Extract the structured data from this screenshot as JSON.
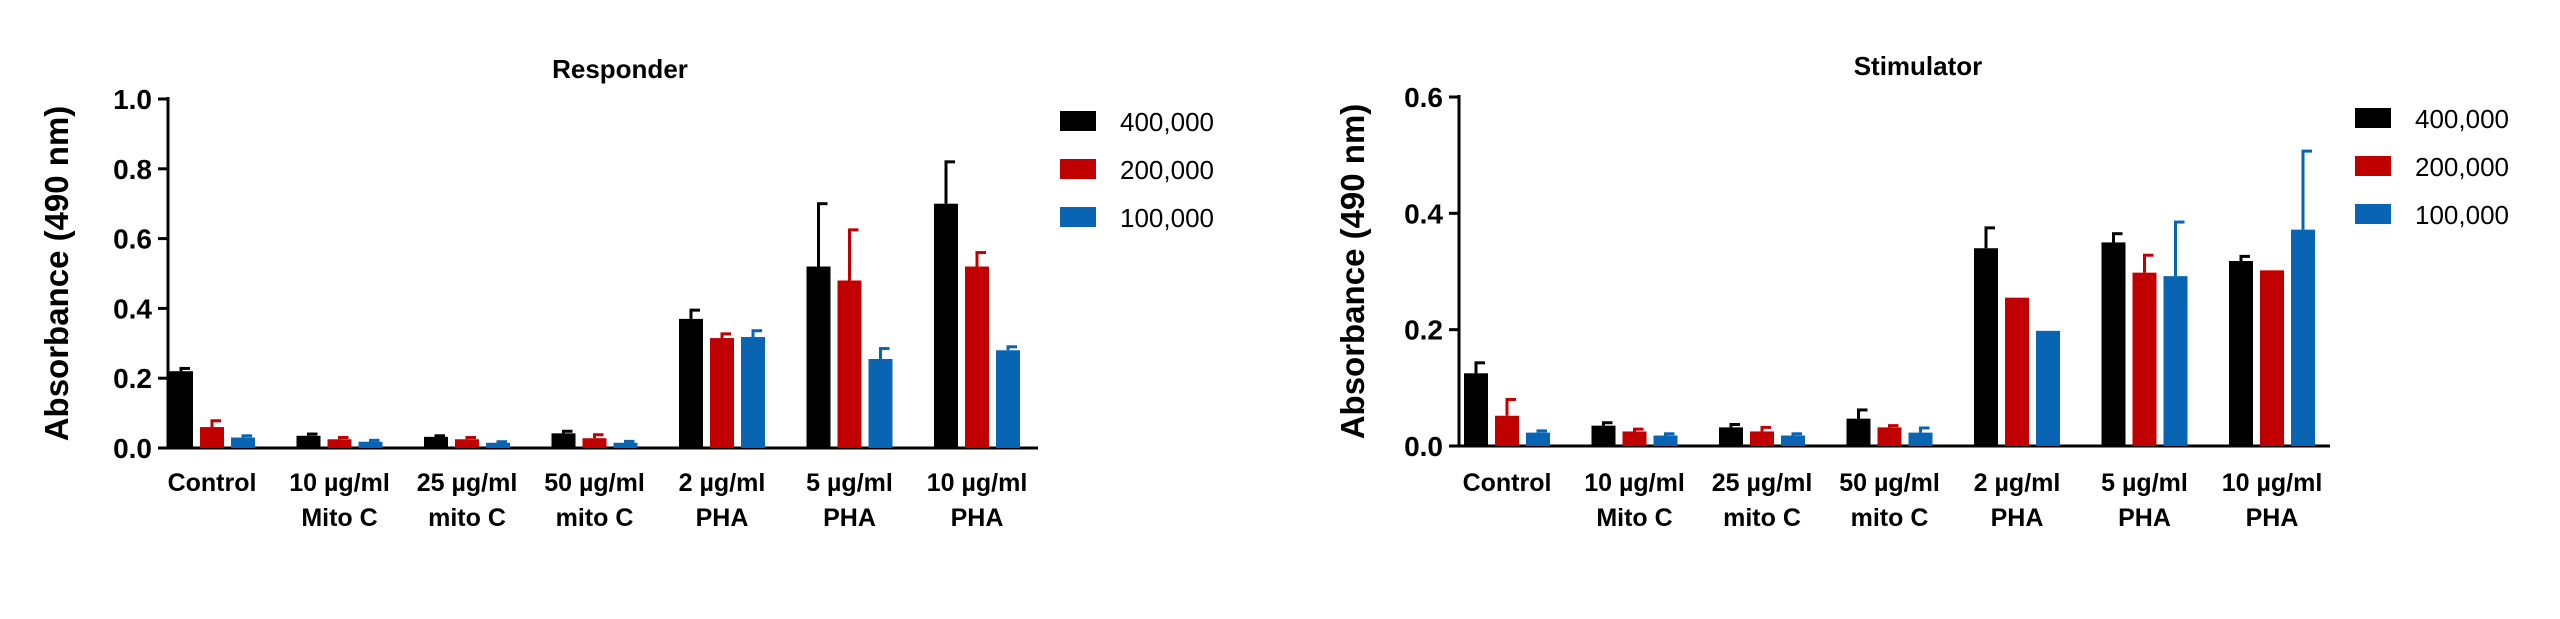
{
  "chart_data": [
    {
      "type": "bar",
      "title": "Responder",
      "ylabel": "Absorbance (490 nm)",
      "xlabel": "",
      "ylim": [
        0,
        1.0
      ],
      "yticks": [
        "0.0",
        "0.2",
        "0.4",
        "0.6",
        "0.8",
        "1.0"
      ],
      "categories": [
        [
          "Control"
        ],
        [
          "10 µg/ml",
          "Mito C"
        ],
        [
          "25 µg/ml",
          "mito C"
        ],
        [
          "50 µg/ml",
          "mito C"
        ],
        [
          "2 µg/ml",
          "PHA"
        ],
        [
          "5 µg/ml",
          "PHA"
        ],
        [
          "10 µg/ml",
          "PHA"
        ]
      ],
      "legend_position": "top-right",
      "series": [
        {
          "name": "400,000",
          "color": "#000000",
          "values": [
            0.22,
            0.035,
            0.032,
            0.042,
            0.37,
            0.52,
            0.7
          ],
          "errors": [
            0.008,
            0.005,
            0.003,
            0.006,
            0.025,
            0.18,
            0.12
          ]
        },
        {
          "name": "200,000",
          "color": "#c00000",
          "values": [
            0.06,
            0.025,
            0.025,
            0.028,
            0.315,
            0.48,
            0.52
          ],
          "errors": [
            0.018,
            0.005,
            0.005,
            0.01,
            0.012,
            0.145,
            0.04
          ]
        },
        {
          "name": "100,000",
          "color": "#0a64b4",
          "values": [
            0.03,
            0.018,
            0.015,
            0.015,
            0.318,
            0.255,
            0.28
          ],
          "errors": [
            0.005,
            0.004,
            0.003,
            0.004,
            0.018,
            0.03,
            0.01
          ]
        }
      ]
    },
    {
      "type": "bar",
      "title": "Stimulator",
      "ylabel": "Absorbance (490 nm)",
      "xlabel": "",
      "ylim": [
        0,
        0.6
      ],
      "yticks": [
        "0.0",
        "0.2",
        "0.4",
        "0.6"
      ],
      "categories": [
        [
          "Control"
        ],
        [
          "10 µg/ml",
          "Mito C"
        ],
        [
          "25 µg/ml",
          "mito C"
        ],
        [
          "50 µg/ml",
          "mito C"
        ],
        [
          "2 µg/ml",
          "PHA"
        ],
        [
          "5 µg/ml",
          "PHA"
        ],
        [
          "10 µg/ml",
          "PHA"
        ]
      ],
      "legend_position": "top-right",
      "series": [
        {
          "name": "400,000",
          "color": "#000000",
          "values": [
            0.125,
            0.035,
            0.032,
            0.047,
            0.34,
            0.35,
            0.318
          ],
          "errors": [
            0.018,
            0.005,
            0.005,
            0.015,
            0.035,
            0.015,
            0.008
          ]
        },
        {
          "name": "200,000",
          "color": "#c00000",
          "values": [
            0.052,
            0.025,
            0.025,
            0.032,
            0.255,
            0.298,
            0.302
          ],
          "errors": [
            0.028,
            0.004,
            0.007,
            0.003,
            0.0,
            0.03,
            0.0
          ]
        },
        {
          "name": "100,000",
          "color": "#0a64b4",
          "values": [
            0.023,
            0.018,
            0.018,
            0.023,
            0.198,
            0.292,
            0.372
          ],
          "errors": [
            0.003,
            0.003,
            0.003,
            0.008,
            0.0,
            0.093,
            0.135
          ]
        }
      ]
    }
  ]
}
